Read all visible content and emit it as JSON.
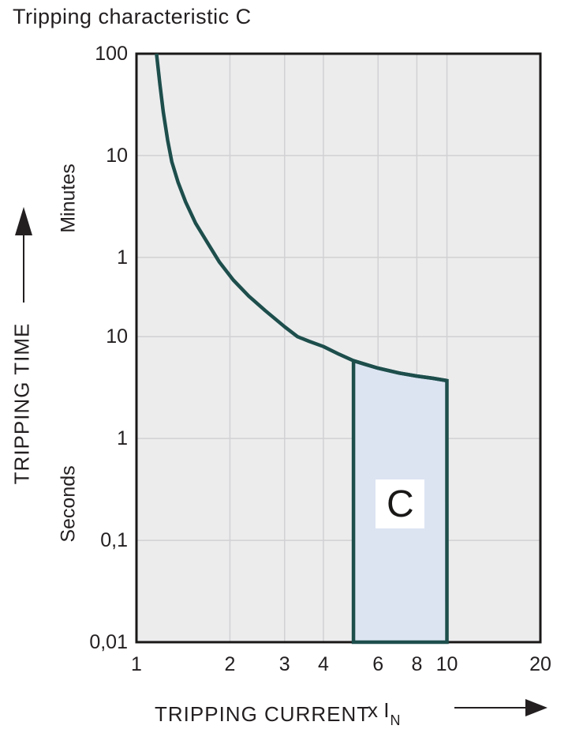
{
  "title": "Tripping characteristic C",
  "colors": {
    "curve": "#1d4e4c",
    "trip_zone_fill": "#dce4f2",
    "plot_background": "#ececed",
    "gridline": "#d1d1d3",
    "plot_border": "#1a1717",
    "text": "#231f20",
    "label_box": "#ffffff"
  },
  "chart_data": {
    "type": "line",
    "title": "Tripping characteristic C",
    "grid": true,
    "x_axis": {
      "label": "TRIPPING CURRENT",
      "unit_prefix": "x I",
      "unit_sub": "N",
      "scale": "log",
      "min": 1,
      "max": 20,
      "ticks": [
        {
          "value": 1,
          "label": "1"
        },
        {
          "value": 2,
          "label": "2"
        },
        {
          "value": 3,
          "label": "3"
        },
        {
          "value": 4,
          "label": "4"
        },
        {
          "value": 6,
          "label": "6"
        },
        {
          "value": 8,
          "label": "8"
        },
        {
          "value": 10,
          "label": "10"
        },
        {
          "value": 20,
          "label": "20"
        }
      ]
    },
    "y_axis": {
      "label": "TRIPPING TIME",
      "scale": "log",
      "max_seconds": 6000,
      "min_seconds": 0.01,
      "unit_zones": [
        {
          "label": "Minutes"
        },
        {
          "label": "Seconds"
        }
      ],
      "ticks": [
        {
          "seconds": 6000,
          "label": "100"
        },
        {
          "seconds": 600,
          "label": "10"
        },
        {
          "seconds": 60,
          "label": "1"
        },
        {
          "seconds": 10,
          "label": "10"
        },
        {
          "seconds": 1,
          "label": "1"
        },
        {
          "seconds": 0.1,
          "label": "0,1"
        },
        {
          "seconds": 0.01,
          "label": "0,01"
        }
      ]
    },
    "series": [
      {
        "name": "type-C-tripping-curve",
        "points": [
          [
            1.16,
            6000
          ],
          [
            1.19,
            3000
          ],
          [
            1.22,
            1600
          ],
          [
            1.26,
            850
          ],
          [
            1.3,
            520
          ],
          [
            1.36,
            330
          ],
          [
            1.44,
            210
          ],
          [
            1.55,
            130
          ],
          [
            1.7,
            82
          ],
          [
            1.85,
            54
          ],
          [
            2.05,
            36
          ],
          [
            2.3,
            25
          ],
          [
            2.6,
            18
          ],
          [
            3.0,
            12.5
          ],
          [
            3.3,
            10
          ],
          [
            3.6,
            9.0
          ],
          [
            4.0,
            8.0
          ],
          [
            4.5,
            6.7
          ],
          [
            5.0,
            5.8
          ],
          [
            5.5,
            5.3
          ],
          [
            6.0,
            4.9
          ],
          [
            7.0,
            4.4
          ],
          [
            8.0,
            4.1
          ],
          [
            9.0,
            3.9
          ],
          [
            10.0,
            3.7
          ]
        ]
      }
    ],
    "trip_zone": {
      "label": "C",
      "x_from": 5,
      "x_to": 10,
      "top_follows_curve": true,
      "extends_to_axis_bottom": true
    }
  }
}
